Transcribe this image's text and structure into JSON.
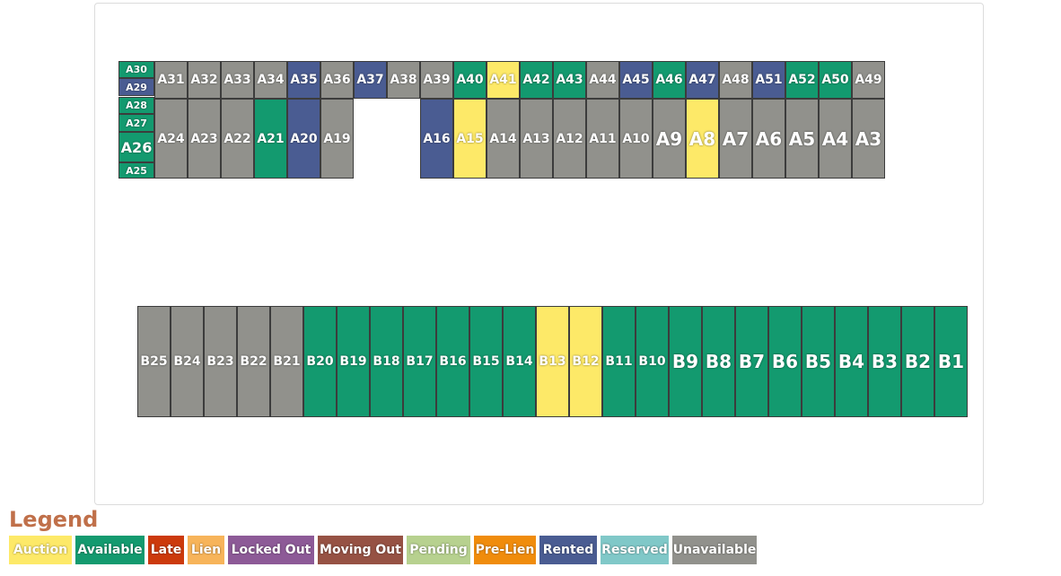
{
  "colors": {
    "Auction": "#fde968",
    "Available": "#139a6f",
    "Late": "#cc3a0c",
    "Lien": "#f7b45a",
    "Locked Out": "#8d5a97",
    "Moving Out": "#965244",
    "Pending": "#b7d18f",
    "Pre-Lien": "#f08c0c",
    "Rented": "#4a5c92",
    "Reserved": "#80c8c8",
    "Unavailable": "#91918c"
  },
  "legend": {
    "title": "Legend",
    "items": [
      "Auction",
      "Available",
      "Late",
      "Lien",
      "Locked Out",
      "Moving Out",
      "Pending",
      "Pre-Lien",
      "Rented",
      "Reserved",
      "Unavailable"
    ]
  },
  "units": [
    {
      "label": "A30",
      "status": "Available"
    },
    {
      "label": "A29",
      "status": "Rented"
    },
    {
      "label": "A28",
      "status": "Available"
    },
    {
      "label": "A27",
      "status": "Available"
    },
    {
      "label": "A26",
      "status": "Available"
    },
    {
      "label": "A25",
      "status": "Available"
    },
    {
      "label": "A31",
      "status": "Unavailable"
    },
    {
      "label": "A32",
      "status": "Unavailable"
    },
    {
      "label": "A33",
      "status": "Unavailable"
    },
    {
      "label": "A34",
      "status": "Unavailable"
    },
    {
      "label": "A35",
      "status": "Rented"
    },
    {
      "label": "A36",
      "status": "Unavailable"
    },
    {
      "label": "A37",
      "status": "Rented"
    },
    {
      "label": "A38",
      "status": "Unavailable"
    },
    {
      "label": "A39",
      "status": "Unavailable"
    },
    {
      "label": "A40",
      "status": "Available"
    },
    {
      "label": "A41",
      "status": "Auction"
    },
    {
      "label": "A42",
      "status": "Available"
    },
    {
      "label": "A43",
      "status": "Available"
    },
    {
      "label": "A44",
      "status": "Unavailable"
    },
    {
      "label": "A45",
      "status": "Rented"
    },
    {
      "label": "A46",
      "status": "Available"
    },
    {
      "label": "A47",
      "status": "Rented"
    },
    {
      "label": "A48",
      "status": "Unavailable"
    },
    {
      "label": "A51",
      "status": "Rented"
    },
    {
      "label": "A52",
      "status": "Available"
    },
    {
      "label": "A50",
      "status": "Available"
    },
    {
      "label": "A49",
      "status": "Unavailable"
    },
    {
      "label": "A24",
      "status": "Unavailable"
    },
    {
      "label": "A23",
      "status": "Unavailable"
    },
    {
      "label": "A22",
      "status": "Unavailable"
    },
    {
      "label": "A21",
      "status": "Available"
    },
    {
      "label": "A20",
      "status": "Rented"
    },
    {
      "label": "A19",
      "status": "Unavailable"
    },
    {
      "label": "A16",
      "status": "Rented"
    },
    {
      "label": "A15",
      "status": "Auction"
    },
    {
      "label": "A14",
      "status": "Unavailable"
    },
    {
      "label": "A13",
      "status": "Unavailable"
    },
    {
      "label": "A12",
      "status": "Unavailable"
    },
    {
      "label": "A11",
      "status": "Unavailable"
    },
    {
      "label": "A10",
      "status": "Unavailable"
    },
    {
      "label": "A9",
      "status": "Unavailable"
    },
    {
      "label": "A8",
      "status": "Auction"
    },
    {
      "label": "A7",
      "status": "Unavailable"
    },
    {
      "label": "A6",
      "status": "Unavailable"
    },
    {
      "label": "A5",
      "status": "Unavailable"
    },
    {
      "label": "A4",
      "status": "Unavailable"
    },
    {
      "label": "A3",
      "status": "Unavailable"
    },
    {
      "label": "B25",
      "status": "Unavailable"
    },
    {
      "label": "B24",
      "status": "Unavailable"
    },
    {
      "label": "B23",
      "status": "Unavailable"
    },
    {
      "label": "B22",
      "status": "Unavailable"
    },
    {
      "label": "B21",
      "status": "Unavailable"
    },
    {
      "label": "B20",
      "status": "Available"
    },
    {
      "label": "B19",
      "status": "Available"
    },
    {
      "label": "B18",
      "status": "Available"
    },
    {
      "label": "B17",
      "status": "Available"
    },
    {
      "label": "B16",
      "status": "Available"
    },
    {
      "label": "B15",
      "status": "Available"
    },
    {
      "label": "B14",
      "status": "Available"
    },
    {
      "label": "B13",
      "status": "Auction"
    },
    {
      "label": "B12",
      "status": "Auction"
    },
    {
      "label": "B11",
      "status": "Available"
    },
    {
      "label": "B10",
      "status": "Available"
    },
    {
      "label": "B9",
      "status": "Available"
    },
    {
      "label": "B8",
      "status": "Available"
    },
    {
      "label": "B7",
      "status": "Available"
    },
    {
      "label": "B6",
      "status": "Available"
    },
    {
      "label": "B5",
      "status": "Available"
    },
    {
      "label": "B4",
      "status": "Available"
    },
    {
      "label": "B3",
      "status": "Available"
    },
    {
      "label": "B2",
      "status": "Available"
    },
    {
      "label": "B1",
      "status": "Available"
    }
  ]
}
